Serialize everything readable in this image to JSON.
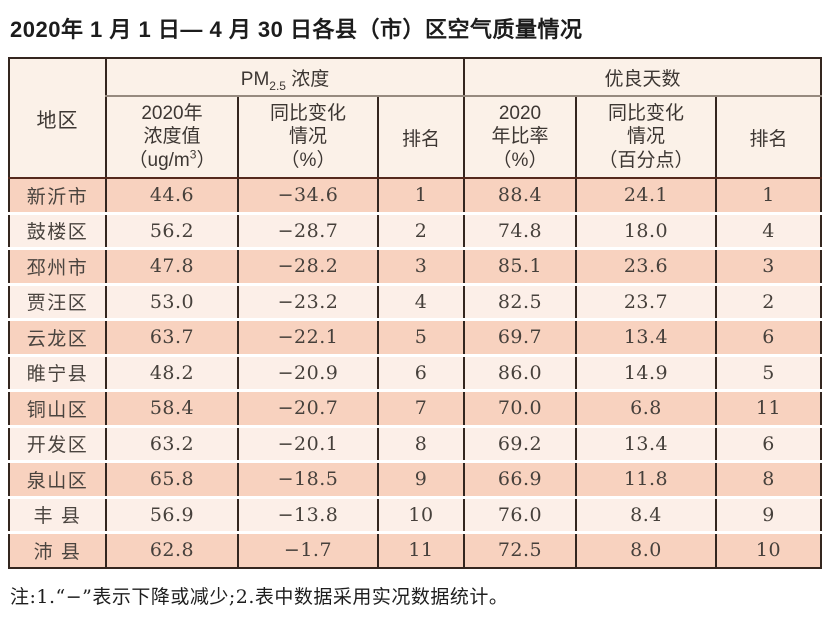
{
  "title": "2020年 1 月 1 日— 4 月 30 日各县（市）区空气质量情况",
  "note": "注:1.“−”表示下降或减少;2.表中数据采用实况数据统计。",
  "colors": {
    "row_odd": "#f8d2bf",
    "row_even": "#fcefe8",
    "header_bg": "#fbf1e8",
    "border_dark": "#34261f",
    "header_divider": "#55291c",
    "group_underline": "#968a7f"
  },
  "table": {
    "region_header": "地区",
    "pm_group": {
      "prefix": "PM",
      "sub": "2.5",
      "suffix": " 浓度"
    },
    "good_group_label": "优良天数",
    "subheaders": {
      "pm_value_l1": "2020年",
      "pm_value_l2": "浓度值",
      "pm_value_l3a": "（ug/m",
      "pm_value_sup": "3",
      "pm_value_l3b": "）",
      "pm_change_l1": "同比变化",
      "pm_change_l2": "情况",
      "pm_change_l3": "（%）",
      "pm_rank": "排名",
      "good_rate_l1": "2020",
      "good_rate_l2": "年比率",
      "good_rate_l3": "（%）",
      "good_change_l1": "同比变化",
      "good_change_l2": "情况",
      "good_change_l3": "（百分点）",
      "good_rank": "排名"
    },
    "rows": [
      {
        "region": "新沂市",
        "pm_value": "44.6",
        "pm_change": "−34.6",
        "pm_rank": "1",
        "rate": "88.4",
        "rate_change": "24.1",
        "rate_rank": "1"
      },
      {
        "region": "鼓楼区",
        "pm_value": "56.2",
        "pm_change": "−28.7",
        "pm_rank": "2",
        "rate": "74.8",
        "rate_change": "18.0",
        "rate_rank": "4"
      },
      {
        "region": "邳州市",
        "pm_value": "47.8",
        "pm_change": "−28.2",
        "pm_rank": "3",
        "rate": "85.1",
        "rate_change": "23.6",
        "rate_rank": "3"
      },
      {
        "region": "贾汪区",
        "pm_value": "53.0",
        "pm_change": "−23.2",
        "pm_rank": "4",
        "rate": "82.5",
        "rate_change": "23.7",
        "rate_rank": "2"
      },
      {
        "region": "云龙区",
        "pm_value": "63.7",
        "pm_change": "−22.1",
        "pm_rank": "5",
        "rate": "69.7",
        "rate_change": "13.4",
        "rate_rank": "6"
      },
      {
        "region": "睢宁县",
        "pm_value": "48.2",
        "pm_change": "−20.9",
        "pm_rank": "6",
        "rate": "86.0",
        "rate_change": "14.9",
        "rate_rank": "5"
      },
      {
        "region": "铜山区",
        "pm_value": "58.4",
        "pm_change": "−20.7",
        "pm_rank": "7",
        "rate": "70.0",
        "rate_change": "6.8",
        "rate_rank": "11"
      },
      {
        "region": "开发区",
        "pm_value": "63.2",
        "pm_change": "−20.1",
        "pm_rank": "8",
        "rate": "69.2",
        "rate_change": "13.4",
        "rate_rank": "6"
      },
      {
        "region": "泉山区",
        "pm_value": "65.8",
        "pm_change": "−18.5",
        "pm_rank": "9",
        "rate": "66.9",
        "rate_change": "11.8",
        "rate_rank": "8"
      },
      {
        "region": "丰 县",
        "pm_value": "56.9",
        "pm_change": "−13.8",
        "pm_rank": "10",
        "rate": "76.0",
        "rate_change": "8.4",
        "rate_rank": "9"
      },
      {
        "region": "沛 县",
        "pm_value": "62.8",
        "pm_change": "−1.7",
        "pm_rank": "11",
        "rate": "72.5",
        "rate_change": "8.0",
        "rate_rank": "10"
      }
    ]
  }
}
